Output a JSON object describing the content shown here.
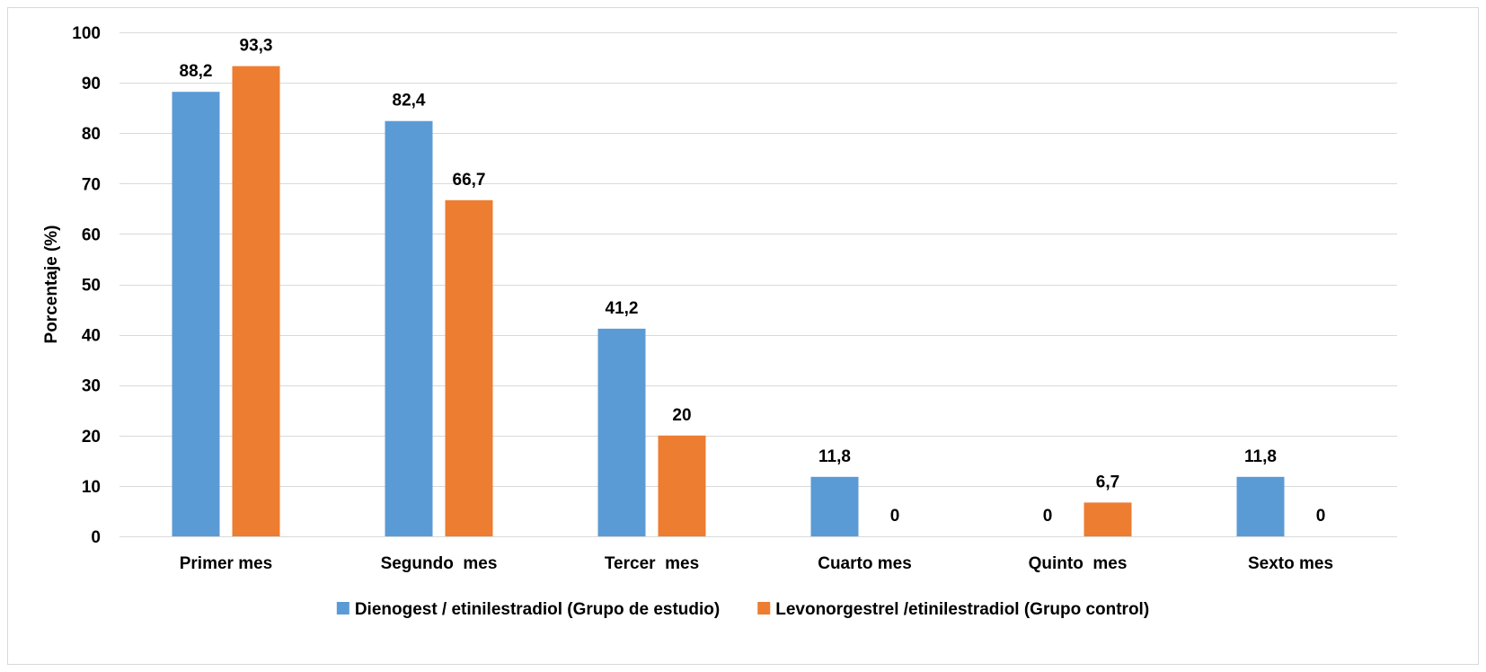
{
  "chart_data": {
    "type": "bar",
    "categories": [
      "Primer mes",
      "Segundo  mes",
      "Tercer  mes",
      "Cuarto mes",
      "Quinto  mes",
      "Sexto mes"
    ],
    "series": [
      {
        "name": "Dienogest / etinilestradiol (Grupo de estudio)",
        "color": "#5B9BD5",
        "values": [
          88.2,
          82.4,
          41.2,
          11.8,
          0,
          11.8
        ],
        "labels": [
          "88,2",
          "82,4",
          "41,2",
          "11,8",
          "0",
          "11,8"
        ]
      },
      {
        "name": "Levonorgestrel /etinilestradiol (Grupo control)",
        "color": "#ED7D31",
        "values": [
          93.3,
          66.7,
          20,
          0,
          6.7,
          0
        ],
        "labels": [
          "93,3",
          "66,7",
          "20",
          "0",
          "6,7",
          "0"
        ]
      }
    ],
    "title": "",
    "xlabel": "",
    "ylabel": "Porcentaje (%)",
    "ylim": [
      0,
      100
    ],
    "yticks": [
      "0",
      "10",
      "20",
      "30",
      "40",
      "50",
      "60",
      "70",
      "80",
      "90",
      "100"
    ],
    "grid": true,
    "legend_position": "bottom",
    "gridline_color": "#D9D9D9"
  }
}
